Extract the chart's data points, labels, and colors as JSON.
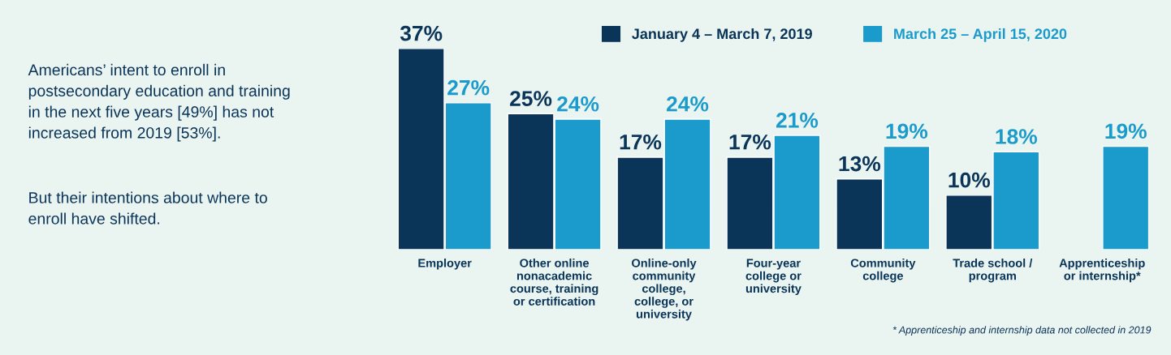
{
  "chart_data": {
    "type": "bar",
    "categories": [
      "Employer",
      "Other online\nnonacademic\ncourse, training\nor certification",
      "Online-only\ncommunity\ncollege,\ncollege, or\nuniversity",
      "Four-year\ncollege or\nuniversity",
      "Community\ncollege",
      "Trade school /\nprogram",
      "Apprenticeship\nor internship*"
    ],
    "series": [
      {
        "name": "January 4 – March 7, 2019",
        "color": "#0b3558",
        "values": [
          37,
          25,
          17,
          17,
          13,
          10,
          null
        ],
        "value_labels": [
          "37%",
          "25%",
          "17%",
          "17%",
          "13%",
          "10%",
          null
        ]
      },
      {
        "name": "March 25 – April 15, 2020",
        "color": "#1a9bcb",
        "values": [
          27,
          24,
          24,
          21,
          19,
          18,
          19
        ],
        "value_labels": [
          "27%",
          "24%",
          "24%",
          "21%",
          "19%",
          "18%",
          "19%"
        ]
      }
    ],
    "annotations": [
      "Americans’ intent to enroll in\npostsecondary education and training\nin the next five years [49%] has not\nincreased from 2019 [53%].",
      "But their intentions about where to\nenroll have shifted.",
      "* Apprenticeship and internship data not collected in 2019"
    ],
    "legend": "top right",
    "grid": false
  }
}
